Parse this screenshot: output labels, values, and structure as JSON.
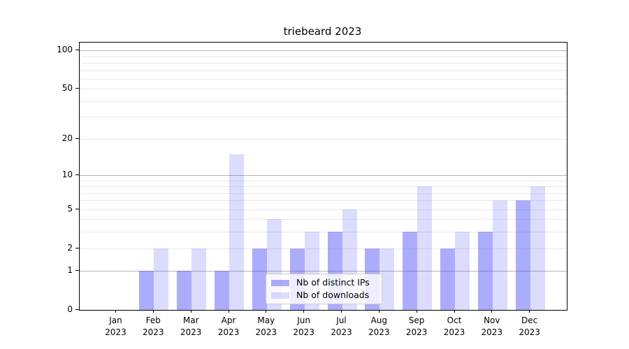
{
  "title": "triebeard 2023",
  "chart_data": {
    "type": "bar",
    "title": "triebeard 2023",
    "categories": [
      "Jan",
      "Feb",
      "Mar",
      "Apr",
      "May",
      "Jun",
      "Jul",
      "Aug",
      "Sep",
      "Oct",
      "Nov",
      "Dec"
    ],
    "year": "2023",
    "series": [
      {
        "name": "Nb of distinct IPs",
        "color": "rgba(70,70,248,0.45)",
        "values": [
          0,
          1,
          1,
          1,
          2,
          2,
          3,
          2,
          3,
          2,
          3,
          6
        ]
      },
      {
        "name": "Nb of downloads",
        "color": "rgba(70,70,248,0.19)",
        "values": [
          0,
          2,
          2,
          15,
          4,
          3,
          5,
          2,
          8,
          3,
          6,
          8
        ]
      }
    ],
    "xlabel": "",
    "ylabel": "",
    "y_scale": "log1p",
    "ylim": [
      0,
      115
    ],
    "y_ticks_labeled": [
      0,
      1,
      2,
      5,
      10,
      20,
      50,
      100
    ],
    "y_gridlines_major": [
      1,
      10,
      100
    ],
    "y_gridlines_minor": [
      2,
      3,
      4,
      5,
      6,
      7,
      8,
      9,
      20,
      30,
      40,
      50,
      60,
      70,
      80,
      90
    ],
    "grid": "on",
    "legend_position": "lower center"
  },
  "colors": {
    "background": "#ffffff",
    "spine": "#000000",
    "grid_major": "#b3b3b3",
    "grid_minor": "#e9e9e9",
    "bar_dark": "rgba(70,70,248,0.45)",
    "bar_light": "rgba(70,70,248,0.19)"
  }
}
